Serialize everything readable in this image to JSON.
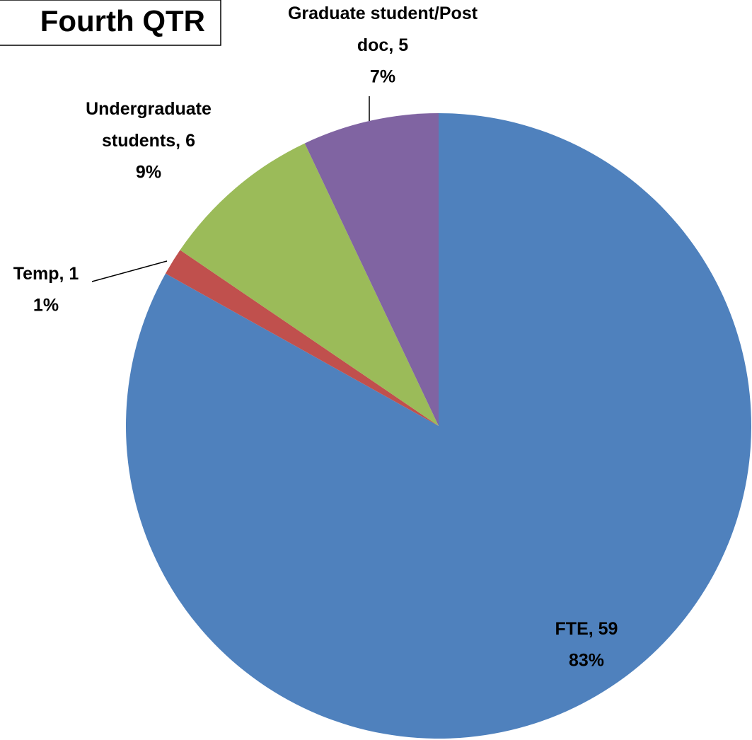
{
  "chart_data": {
    "type": "pie",
    "title": "Fourth QTR",
    "categories": [
      "FTE",
      "Temp",
      "Undergraduate students",
      "Graduate student/Post doc"
    ],
    "values": [
      59,
      1,
      6,
      5
    ],
    "value_labels": [
      "FTE, 59",
      "Temp, 1",
      "Undergraduate students, 6",
      "Graduate student/Post doc, 5"
    ],
    "percent_labels": [
      "83%",
      "1%",
      "9%",
      "7%"
    ],
    "colors": [
      "#4f81bd",
      "#c0504d",
      "#9bbb59",
      "#8064a2"
    ]
  }
}
